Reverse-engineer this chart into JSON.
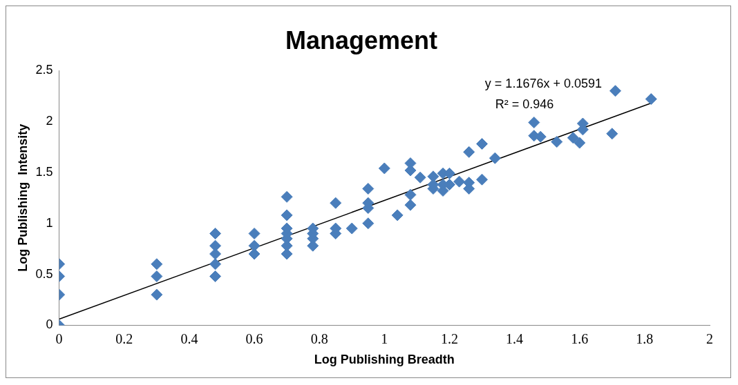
{
  "chart_data": {
    "type": "scatter",
    "title": "Management",
    "xlabel": "Log Publishing Breadth",
    "ylabel": "Log Publishing  Intensity",
    "xlim": [
      0,
      2
    ],
    "xticks": [
      0,
      0.2,
      0.4,
      0.6,
      0.8,
      1,
      1.2,
      1.4,
      1.6,
      1.8,
      2
    ],
    "ylim": [
      0,
      2.5
    ],
    "yticks": [
      0,
      0.5,
      1,
      1.5,
      2,
      2.5
    ],
    "grid": false,
    "legend": false,
    "annotations": [
      "y = 1.1676x + 0.0591",
      "R² = 0.946"
    ],
    "series": [
      {
        "type": "scatter",
        "marker": "diamond",
        "color": "#4a7ebb",
        "x": [
          0,
          0,
          0,
          0,
          0.3,
          0.3,
          0.3,
          0.48,
          0.48,
          0.48,
          0.48,
          0.48,
          0.6,
          0.6,
          0.6,
          0.7,
          0.7,
          0.7,
          0.7,
          0.7,
          0.7,
          0.7,
          0.78,
          0.78,
          0.78,
          0.78,
          0.85,
          0.85,
          0.85,
          0.9,
          0.95,
          0.95,
          0.95,
          0.95,
          1.0,
          1.04,
          1.08,
          1.08,
          1.08,
          1.08,
          1.11,
          1.15,
          1.15,
          1.15,
          1.18,
          1.18,
          1.18,
          1.2,
          1.2,
          1.23,
          1.26,
          1.26,
          1.26,
          1.3,
          1.3,
          1.34,
          1.46,
          1.46,
          1.48,
          1.53,
          1.58,
          1.6,
          1.61,
          1.61,
          1.7,
          1.71,
          1.82
        ],
        "values": [
          0,
          0.3,
          0.48,
          0.6,
          0.3,
          0.48,
          0.6,
          0.48,
          0.6,
          0.7,
          0.78,
          0.9,
          0.7,
          0.78,
          0.9,
          0.7,
          0.78,
          0.85,
          0.9,
          0.95,
          1.08,
          1.26,
          0.78,
          0.85,
          0.9,
          0.95,
          0.9,
          0.95,
          1.2,
          0.95,
          1.0,
          1.15,
          1.2,
          1.34,
          1.54,
          1.08,
          1.18,
          1.28,
          1.52,
          1.59,
          1.45,
          1.34,
          1.38,
          1.46,
          1.32,
          1.38,
          1.49,
          1.38,
          1.49,
          1.41,
          1.34,
          1.4,
          1.7,
          1.43,
          1.78,
          1.64,
          1.86,
          1.99,
          1.85,
          1.8,
          1.84,
          1.79,
          1.92,
          1.98,
          1.88,
          2.3,
          2.22
        ]
      },
      {
        "type": "line",
        "marker": "none",
        "color": "#000000",
        "x": [
          0,
          1.82
        ],
        "values": [
          0.06,
          2.18
        ]
      }
    ]
  }
}
